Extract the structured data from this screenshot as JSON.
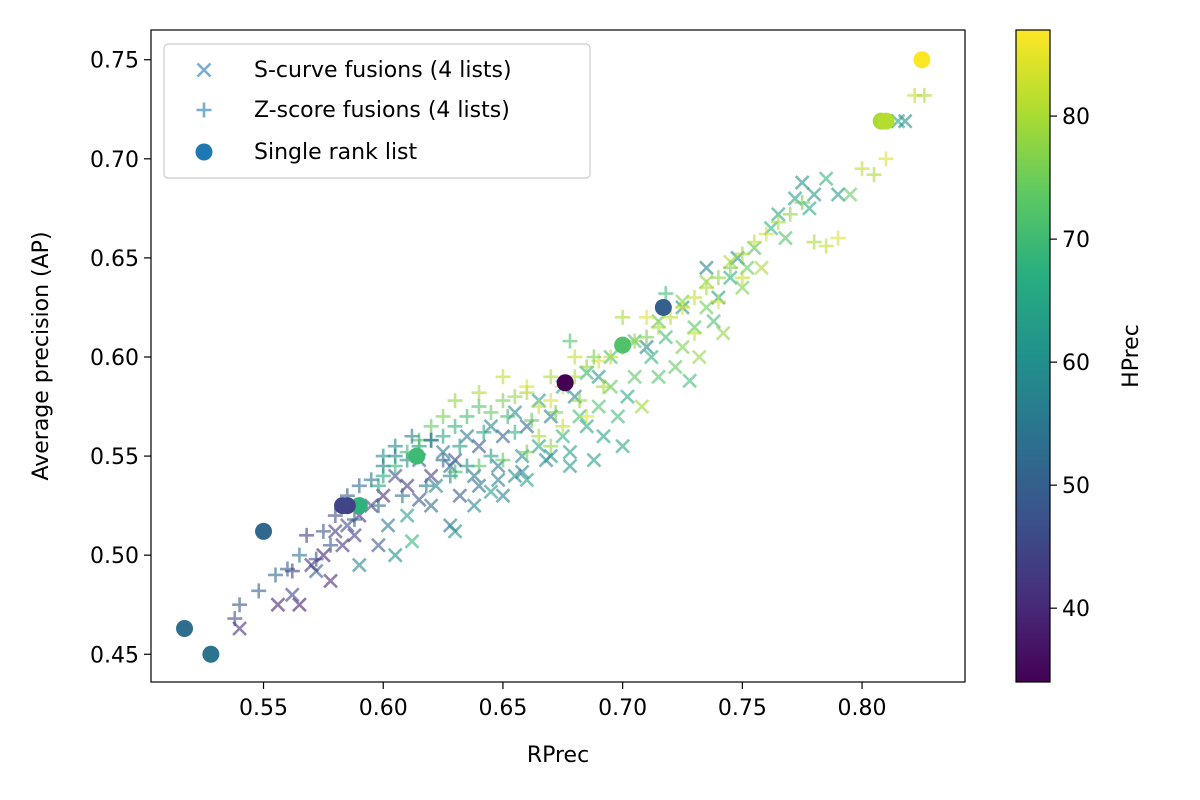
{
  "chart_data": {
    "type": "scatter",
    "xlabel": "RPrec",
    "ylabel": "Average precision (AP)",
    "xlim": [
      0.503,
      0.843
    ],
    "ylim": [
      0.436,
      0.765
    ],
    "xticks": [
      0.55,
      0.6,
      0.65,
      0.7,
      0.75,
      0.8
    ],
    "xtick_labels": [
      "0.55",
      "0.60",
      "0.65",
      "0.70",
      "0.75",
      "0.80"
    ],
    "yticks": [
      0.45,
      0.5,
      0.55,
      0.6,
      0.65,
      0.7,
      0.75
    ],
    "ytick_labels": [
      "0.45",
      "0.50",
      "0.55",
      "0.60",
      "0.65",
      "0.70",
      "0.75"
    ],
    "grid": false,
    "legend_position": "top-left",
    "colorbar": {
      "label": "HPrec",
      "range": [
        34,
        87
      ],
      "ticks": [
        40,
        50,
        60,
        70,
        80
      ],
      "tick_labels": [
        "40",
        "50",
        "60",
        "70",
        "80"
      ],
      "colormap": "viridis"
    },
    "series": [
      {
        "name": "S-curve fusions (4 lists)",
        "marker": "x",
        "alpha": 0.6,
        "points": [
          [
            0.54,
            0.463,
            40
          ],
          [
            0.556,
            0.475,
            39
          ],
          [
            0.565,
            0.475,
            38
          ],
          [
            0.562,
            0.48,
            45
          ],
          [
            0.578,
            0.487,
            40
          ],
          [
            0.572,
            0.492,
            50
          ],
          [
            0.583,
            0.505,
            42
          ],
          [
            0.588,
            0.51,
            44
          ],
          [
            0.59,
            0.495,
            58
          ],
          [
            0.598,
            0.505,
            48
          ],
          [
            0.602,
            0.515,
            55
          ],
          [
            0.605,
            0.5,
            60
          ],
          [
            0.61,
            0.52,
            63
          ],
          [
            0.612,
            0.507,
            68
          ],
          [
            0.615,
            0.528,
            47
          ],
          [
            0.62,
            0.525,
            52
          ],
          [
            0.622,
            0.535,
            57
          ],
          [
            0.628,
            0.515,
            55
          ],
          [
            0.63,
            0.512,
            60
          ],
          [
            0.632,
            0.53,
            48
          ],
          [
            0.638,
            0.525,
            58
          ],
          [
            0.64,
            0.535,
            53
          ],
          [
            0.645,
            0.532,
            62
          ],
          [
            0.648,
            0.545,
            55
          ],
          [
            0.65,
            0.53,
            57
          ],
          [
            0.655,
            0.54,
            59
          ],
          [
            0.658,
            0.55,
            60
          ],
          [
            0.66,
            0.538,
            63
          ],
          [
            0.665,
            0.555,
            65
          ],
          [
            0.67,
            0.55,
            60
          ],
          [
            0.675,
            0.56,
            68
          ],
          [
            0.678,
            0.552,
            63
          ],
          [
            0.682,
            0.57,
            70
          ],
          [
            0.685,
            0.565,
            66
          ],
          [
            0.69,
            0.575,
            72
          ],
          [
            0.692,
            0.56,
            64
          ],
          [
            0.695,
            0.585,
            74
          ],
          [
            0.698,
            0.57,
            70
          ],
          [
            0.702,
            0.58,
            66
          ],
          [
            0.705,
            0.59,
            73
          ],
          [
            0.708,
            0.575,
            79
          ],
          [
            0.712,
            0.6,
            68
          ],
          [
            0.715,
            0.59,
            72
          ],
          [
            0.718,
            0.61,
            70
          ],
          [
            0.722,
            0.595,
            74
          ],
          [
            0.725,
            0.605,
            76
          ],
          [
            0.728,
            0.588,
            70
          ],
          [
            0.73,
            0.615,
            72
          ],
          [
            0.732,
            0.6,
            78
          ],
          [
            0.735,
            0.625,
            75
          ],
          [
            0.738,
            0.618,
            71
          ],
          [
            0.74,
            0.63,
            64
          ],
          [
            0.742,
            0.612,
            78
          ],
          [
            0.745,
            0.64,
            67
          ],
          [
            0.748,
            0.65,
            60
          ],
          [
            0.75,
            0.635,
            76
          ],
          [
            0.752,
            0.645,
            74
          ],
          [
            0.755,
            0.655,
            72
          ],
          [
            0.758,
            0.645,
            80
          ],
          [
            0.762,
            0.665,
            68
          ],
          [
            0.765,
            0.672,
            66
          ],
          [
            0.768,
            0.66,
            72
          ],
          [
            0.772,
            0.68,
            64
          ],
          [
            0.775,
            0.688,
            60
          ],
          [
            0.778,
            0.675,
            66
          ],
          [
            0.78,
            0.682,
            62
          ],
          [
            0.785,
            0.69,
            68
          ],
          [
            0.79,
            0.682,
            62
          ],
          [
            0.795,
            0.682,
            74
          ],
          [
            0.81,
            0.719,
            72
          ],
          [
            0.815,
            0.719,
            64
          ],
          [
            0.818,
            0.719,
            60
          ],
          [
            0.735,
            0.645,
            58
          ],
          [
            0.725,
            0.625,
            62
          ],
          [
            0.71,
            0.605,
            58
          ],
          [
            0.69,
            0.59,
            62
          ],
          [
            0.68,
            0.58,
            58
          ],
          [
            0.67,
            0.57,
            56
          ],
          [
            0.66,
            0.565,
            52
          ],
          [
            0.65,
            0.56,
            50
          ],
          [
            0.64,
            0.555,
            48
          ],
          [
            0.63,
            0.548,
            46
          ],
          [
            0.62,
            0.54,
            44
          ],
          [
            0.61,
            0.535,
            42
          ],
          [
            0.6,
            0.53,
            40
          ],
          [
            0.59,
            0.52,
            41
          ],
          [
            0.58,
            0.512,
            43
          ],
          [
            0.575,
            0.5,
            39
          ],
          [
            0.57,
            0.495,
            41
          ],
          [
            0.585,
            0.515,
            46
          ],
          [
            0.595,
            0.525,
            44
          ],
          [
            0.605,
            0.54,
            46
          ],
          [
            0.615,
            0.548,
            50
          ],
          [
            0.625,
            0.552,
            54
          ],
          [
            0.635,
            0.56,
            56
          ],
          [
            0.645,
            0.565,
            58
          ],
          [
            0.655,
            0.572,
            60
          ],
          [
            0.665,
            0.578,
            64
          ],
          [
            0.675,
            0.585,
            66
          ],
          [
            0.685,
            0.592,
            68
          ],
          [
            0.695,
            0.6,
            70
          ],
          [
            0.705,
            0.608,
            72
          ],
          [
            0.715,
            0.618,
            74
          ],
          [
            0.725,
            0.628,
            76
          ],
          [
            0.735,
            0.638,
            78
          ],
          [
            0.745,
            0.648,
            80
          ],
          [
            0.7,
            0.555,
            66
          ],
          [
            0.688,
            0.548,
            64
          ],
          [
            0.678,
            0.545,
            62
          ],
          [
            0.668,
            0.548,
            60
          ],
          [
            0.658,
            0.542,
            58
          ],
          [
            0.648,
            0.538,
            56
          ],
          [
            0.638,
            0.54,
            54
          ],
          [
            0.628,
            0.545,
            52
          ]
        ]
      },
      {
        "name": "Z-score fusions (4 lists)",
        "marker": "+",
        "alpha": 0.6,
        "points": [
          [
            0.54,
            0.475,
            48
          ],
          [
            0.538,
            0.468,
            46
          ],
          [
            0.548,
            0.482,
            50
          ],
          [
            0.555,
            0.49,
            52
          ],
          [
            0.56,
            0.493,
            50
          ],
          [
            0.565,
            0.5,
            54
          ],
          [
            0.568,
            0.51,
            44
          ],
          [
            0.575,
            0.512,
            48
          ],
          [
            0.58,
            0.52,
            46
          ],
          [
            0.585,
            0.53,
            50
          ],
          [
            0.59,
            0.535,
            52
          ],
          [
            0.595,
            0.538,
            54
          ],
          [
            0.6,
            0.545,
            56
          ],
          [
            0.605,
            0.55,
            58
          ],
          [
            0.61,
            0.548,
            60
          ],
          [
            0.615,
            0.555,
            62
          ],
          [
            0.62,
            0.558,
            64
          ],
          [
            0.625,
            0.56,
            66
          ],
          [
            0.63,
            0.565,
            68
          ],
          [
            0.635,
            0.57,
            70
          ],
          [
            0.64,
            0.575,
            72
          ],
          [
            0.645,
            0.572,
            74
          ],
          [
            0.65,
            0.578,
            76
          ],
          [
            0.655,
            0.58,
            78
          ],
          [
            0.66,
            0.582,
            80
          ],
          [
            0.665,
            0.575,
            82
          ],
          [
            0.67,
            0.578,
            84
          ],
          [
            0.675,
            0.585,
            82
          ],
          [
            0.68,
            0.59,
            80
          ],
          [
            0.685,
            0.595,
            78
          ],
          [
            0.69,
            0.598,
            84
          ],
          [
            0.695,
            0.6,
            82
          ],
          [
            0.7,
            0.605,
            80
          ],
          [
            0.705,
            0.608,
            78
          ],
          [
            0.71,
            0.61,
            76
          ],
          [
            0.715,
            0.615,
            80
          ],
          [
            0.72,
            0.62,
            82
          ],
          [
            0.725,
            0.625,
            84
          ],
          [
            0.73,
            0.63,
            82
          ],
          [
            0.735,
            0.635,
            80
          ],
          [
            0.74,
            0.64,
            78
          ],
          [
            0.745,
            0.645,
            76
          ],
          [
            0.75,
            0.652,
            80
          ],
          [
            0.755,
            0.658,
            82
          ],
          [
            0.76,
            0.662,
            84
          ],
          [
            0.765,
            0.668,
            80
          ],
          [
            0.77,
            0.672,
            78
          ],
          [
            0.775,
            0.678,
            76
          ],
          [
            0.78,
            0.658,
            80
          ],
          [
            0.785,
            0.656,
            82
          ],
          [
            0.79,
            0.66,
            84
          ],
          [
            0.8,
            0.695,
            82
          ],
          [
            0.805,
            0.692,
            80
          ],
          [
            0.81,
            0.7,
            84
          ],
          [
            0.822,
            0.732,
            82
          ],
          [
            0.826,
            0.732,
            80
          ],
          [
            0.71,
            0.62,
            84
          ],
          [
            0.68,
            0.6,
            82
          ],
          [
            0.67,
            0.59,
            80
          ],
          [
            0.66,
            0.585,
            84
          ],
          [
            0.65,
            0.59,
            82
          ],
          [
            0.64,
            0.582,
            80
          ],
          [
            0.63,
            0.578,
            78
          ],
          [
            0.625,
            0.57,
            76
          ],
          [
            0.62,
            0.565,
            74
          ],
          [
            0.615,
            0.558,
            72
          ],
          [
            0.61,
            0.552,
            70
          ],
          [
            0.605,
            0.545,
            68
          ],
          [
            0.6,
            0.54,
            66
          ],
          [
            0.598,
            0.535,
            64
          ],
          [
            0.6,
            0.55,
            60
          ],
          [
            0.605,
            0.555,
            58
          ],
          [
            0.612,
            0.56,
            56
          ],
          [
            0.62,
            0.558,
            54
          ],
          [
            0.625,
            0.548,
            52
          ],
          [
            0.632,
            0.555,
            62
          ],
          [
            0.642,
            0.562,
            66
          ],
          [
            0.652,
            0.57,
            70
          ],
          [
            0.662,
            0.568,
            74
          ],
          [
            0.672,
            0.572,
            76
          ],
          [
            0.682,
            0.578,
            78
          ],
          [
            0.692,
            0.585,
            80
          ],
          [
            0.7,
            0.62,
            80
          ],
          [
            0.73,
            0.612,
            82
          ],
          [
            0.74,
            0.628,
            84
          ],
          [
            0.75,
            0.64,
            82
          ],
          [
            0.718,
            0.632,
            70
          ],
          [
            0.678,
            0.608,
            72
          ],
          [
            0.688,
            0.6,
            76
          ],
          [
            0.655,
            0.562,
            68
          ],
          [
            0.645,
            0.55,
            64
          ],
          [
            0.635,
            0.545,
            60
          ],
          [
            0.628,
            0.54,
            58
          ],
          [
            0.618,
            0.535,
            56
          ],
          [
            0.608,
            0.53,
            54
          ],
          [
            0.598,
            0.525,
            52
          ],
          [
            0.588,
            0.518,
            50
          ],
          [
            0.578,
            0.505,
            48
          ],
          [
            0.572,
            0.498,
            46
          ],
          [
            0.562,
            0.492,
            44
          ],
          [
            0.665,
            0.56,
            80
          ],
          [
            0.675,
            0.565,
            82
          ],
          [
            0.685,
            0.57,
            84
          ],
          [
            0.67,
            0.555,
            78
          ],
          [
            0.66,
            0.552,
            76
          ],
          [
            0.65,
            0.548,
            74
          ],
          [
            0.64,
            0.545,
            72
          ],
          [
            0.63,
            0.542,
            70
          ]
        ]
      },
      {
        "name": "Single rank list",
        "marker": "o",
        "alpha": 1.0,
        "points": [
          [
            0.825,
            0.75,
            87
          ],
          [
            0.808,
            0.719,
            80
          ],
          [
            0.81,
            0.719,
            81
          ],
          [
            0.717,
            0.625,
            50
          ],
          [
            0.7,
            0.606,
            72
          ],
          [
            0.676,
            0.587,
            34
          ],
          [
            0.614,
            0.55,
            70
          ],
          [
            0.59,
            0.525,
            68
          ],
          [
            0.585,
            0.525,
            44
          ],
          [
            0.583,
            0.525,
            45
          ],
          [
            0.55,
            0.512,
            52
          ],
          [
            0.517,
            0.463,
            53
          ],
          [
            0.528,
            0.45,
            54
          ]
        ]
      }
    ]
  }
}
